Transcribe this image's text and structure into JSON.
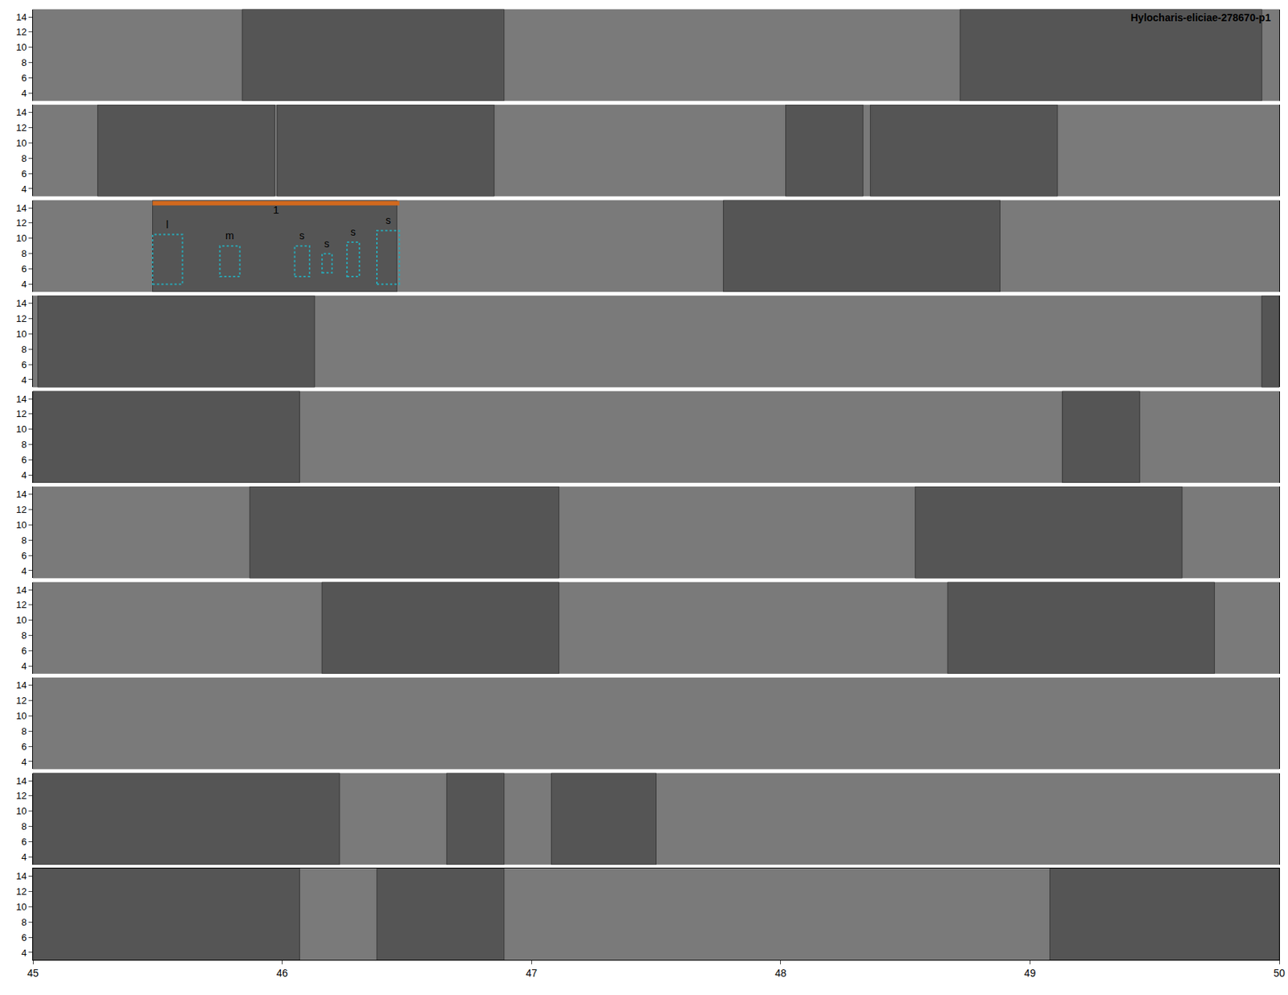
{
  "chart_data": {
    "type": "spectrogram",
    "title": "Hylocharis-eliciae-278670-p1",
    "xlim": [
      45,
      50
    ],
    "xticks": [
      45,
      46,
      47,
      48,
      49,
      50
    ],
    "ylim": [
      3,
      15
    ],
    "yticks": [
      4,
      6,
      8,
      10,
      12,
      14
    ],
    "color": "#7a7a7a",
    "panels": [
      {
        "syllables": [
          [
            45.84,
            46.89
          ],
          [
            48.72,
            49.93
          ]
        ]
      },
      {
        "syllables": [
          [
            45.26,
            45.97
          ],
          [
            45.98,
            46.85
          ],
          [
            48.02,
            48.33
          ],
          [
            48.36,
            49.11
          ]
        ]
      },
      {
        "syllables": [
          [
            45.48,
            46.46
          ],
          [
            47.77,
            48.88
          ]
        ],
        "bar": {
          "label": "1",
          "x0": 45.48,
          "x1": 46.47,
          "y": 14.6,
          "color": "#d2691e"
        },
        "boxes": [
          {
            "label": "l",
            "x0": 45.48,
            "x1": 45.6,
            "y0": 4,
            "y1": 10.5
          },
          {
            "label": "m",
            "x0": 45.75,
            "x1": 45.83,
            "y0": 5,
            "y1": 9
          },
          {
            "label": "s",
            "x0": 46.05,
            "x1": 46.11,
            "y0": 5,
            "y1": 9
          },
          {
            "label": "s",
            "x0": 46.16,
            "x1": 46.2,
            "y0": 5.5,
            "y1": 8
          },
          {
            "label": "s",
            "x0": 46.26,
            "x1": 46.31,
            "y0": 5,
            "y1": 9.5
          },
          {
            "label": "s",
            "x0": 46.38,
            "x1": 46.47,
            "y0": 4,
            "y1": 11
          }
        ],
        "box_color": "#2aa7b5"
      },
      {
        "syllables": [
          [
            45.02,
            46.13
          ],
          [
            49.93,
            50
          ]
        ]
      },
      {
        "syllables": [
          [
            45,
            46.07
          ],
          [
            49.13,
            49.44
          ]
        ]
      },
      {
        "syllables": [
          [
            45.87,
            47.11
          ],
          [
            48.54,
            49.61
          ]
        ]
      },
      {
        "syllables": [
          [
            46.16,
            47.11
          ],
          [
            48.67,
            49.74
          ]
        ]
      },
      {
        "syllables": []
      },
      {
        "syllables": [
          [
            45,
            46.23
          ],
          [
            46.66,
            46.89
          ],
          [
            47.08,
            47.5
          ]
        ]
      },
      {
        "syllables": [
          [
            45,
            46.07
          ],
          [
            46.38,
            46.89
          ],
          [
            49.08,
            50
          ]
        ]
      }
    ]
  }
}
